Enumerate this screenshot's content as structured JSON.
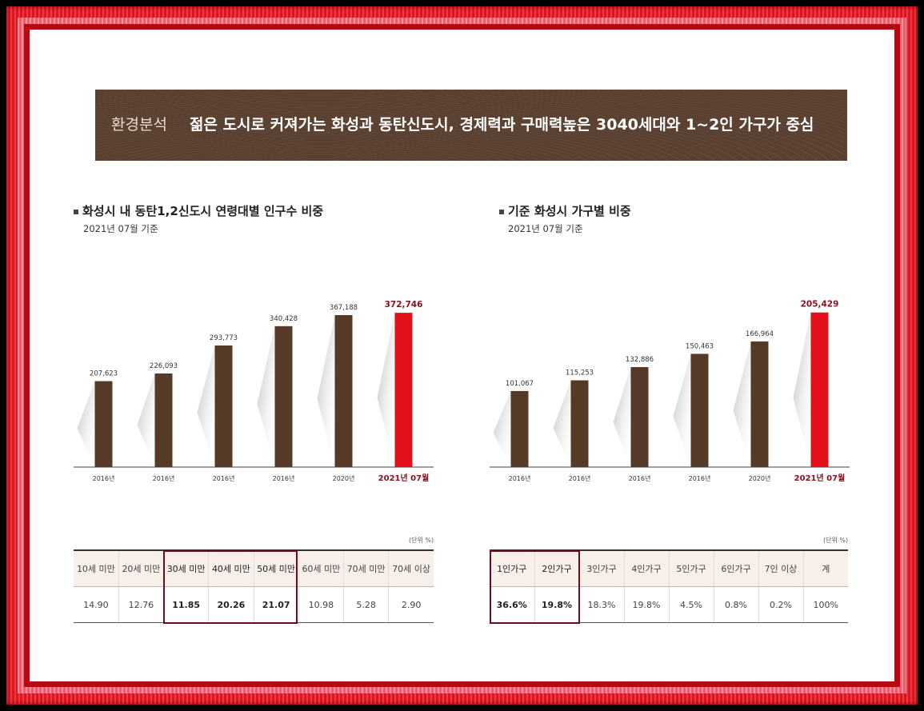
{
  "banner": {
    "tag": "환경분석",
    "headline": "젊은 도시로 커져가는 화성과 동탄신도시, 경제력과 구매력높은 3040세대와 1~2인 가구가 중심"
  },
  "left": {
    "title": "화성시 내 동탄1,2신도시 연령대별 인구수 비중",
    "subtitle": "2021년 07월 기준",
    "unit": "(단위 %)",
    "table": {
      "headers": [
        "10세 미만",
        "20세 미만",
        "30세 미만",
        "40세 미만",
        "50세 미만",
        "60세 미만",
        "70세 미만",
        "70세 이상"
      ],
      "values": [
        "14.90",
        "12.76",
        "11.85",
        "20.26",
        "21.07",
        "10.98",
        "5.28",
        "2.90"
      ]
    }
  },
  "right": {
    "title": "기준 화성시 가구별 비중",
    "subtitle": "2021년 07월 기준",
    "unit": "(단위 %)",
    "table": {
      "headers": [
        "1인가구",
        "2인가구",
        "3인가구",
        "4인가구",
        "5인가구",
        "6인가구",
        "7인 이상",
        "계"
      ],
      "values": [
        "36.6%",
        "19.8%",
        "18.3%",
        "19.8%",
        "4.5%",
        "0.8%",
        "0.2%",
        "100%"
      ]
    }
  },
  "colors": {
    "bar": "#553a27",
    "highlight": "#e3101c",
    "banner": "#5a4030",
    "emphasis": "#8a1020"
  },
  "chart_data": [
    {
      "type": "bar",
      "categories": [
        "2016년",
        "2016년",
        "2016년",
        "2016년",
        "2020년",
        "2021년 07월"
      ],
      "values": [
        207623,
        226093,
        293773,
        340428,
        367188,
        372746
      ],
      "value_labels": [
        "207,623",
        "226,093",
        "293,773",
        "340,428",
        "367,188",
        "372,746"
      ],
      "highlight_index": 5,
      "ylim": [
        0,
        400000
      ]
    },
    {
      "type": "bar",
      "categories": [
        "2016년",
        "2016년",
        "2016년",
        "2016년",
        "2020년",
        "2021년 07월"
      ],
      "values": [
        101067,
        115253,
        132886,
        150463,
        166964,
        205429
      ],
      "value_labels": [
        "101,067",
        "115,253",
        "132,886",
        "150,463",
        "166,964",
        "205,429"
      ],
      "highlight_index": 5,
      "ylim": [
        0,
        220000
      ]
    }
  ]
}
